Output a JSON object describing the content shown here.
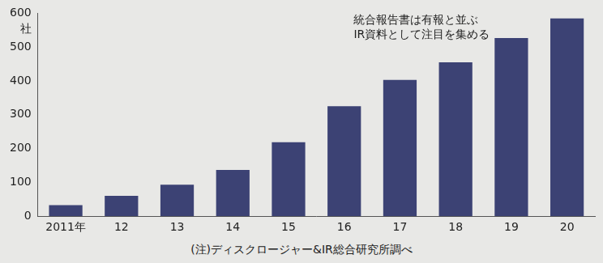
{
  "chart_data": {
    "type": "bar",
    "ylabel": "社",
    "annotation": [
      "統合報告書は有報と並ぶ",
      "IR資料として注目を集める"
    ],
    "note": "(注)ディスクロージャー&IR総合研究所調べ",
    "categories": [
      "2011年",
      "12",
      "13",
      "14",
      "15",
      "16",
      "17",
      "18",
      "19",
      "20"
    ],
    "values": [
      33,
      60,
      93,
      137,
      219,
      325,
      403,
      455,
      527,
      585
    ],
    "color": "#3c4274",
    "ylim": [
      0,
      600
    ],
    "yticks": [
      0,
      100,
      200,
      300,
      400,
      500,
      600
    ],
    "grid": false
  }
}
